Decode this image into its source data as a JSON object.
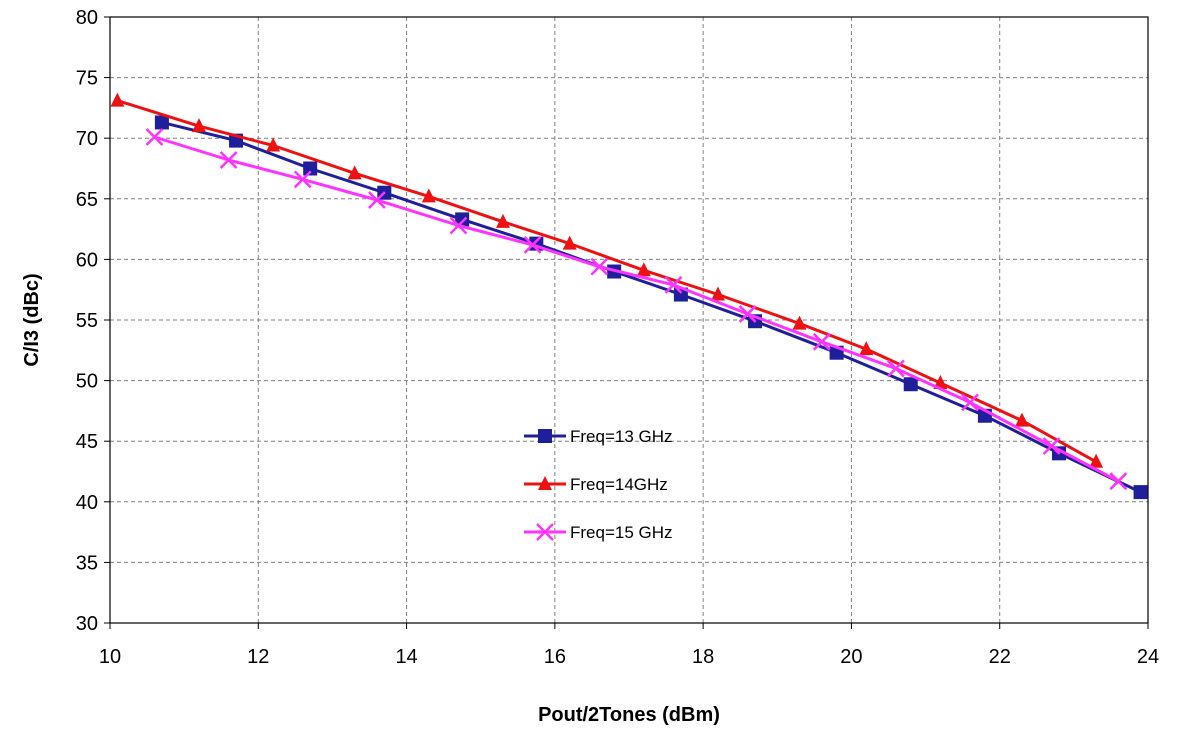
{
  "chart_data": {
    "type": "line",
    "title": "",
    "xlabel": "Pout/2Tones (dBm)",
    "ylabel": "C/I3 (dBc)",
    "xlim": [
      10,
      24
    ],
    "ylim": [
      30,
      80
    ],
    "xticks": [
      10,
      12,
      14,
      16,
      18,
      20,
      22,
      24
    ],
    "yticks": [
      30,
      35,
      40,
      45,
      50,
      55,
      60,
      65,
      70,
      75,
      80
    ],
    "x_tick_labels": [
      "10",
      "12",
      "14",
      "16",
      "18",
      "20",
      "22",
      "24"
    ],
    "y_tick_labels": [
      "30",
      "35",
      "40",
      "45",
      "50",
      "55",
      "60",
      "65",
      "70",
      "75",
      "80"
    ],
    "grid": true,
    "legend_position": "center",
    "series": [
      {
        "name": "Freq=13 GHz",
        "color": "#1f1f9c",
        "marker": "square",
        "x": [
          10.7,
          11.7,
          12.7,
          13.7,
          14.75,
          15.75,
          16.8,
          17.7,
          18.7,
          19.8,
          20.8,
          21.8,
          22.8,
          23.9
        ],
        "y": [
          71.3,
          69.8,
          67.5,
          65.5,
          63.3,
          61.3,
          59.0,
          57.1,
          54.9,
          52.3,
          49.7,
          47.1,
          44.0,
          40.8
        ]
      },
      {
        "name": "Freq=14GHz",
        "color": "#ee1111",
        "marker": "triangle",
        "x": [
          10.1,
          11.2,
          12.2,
          13.3,
          14.3,
          15.3,
          16.2,
          17.2,
          18.2,
          19.3,
          20.2,
          21.2,
          22.3,
          23.3
        ],
        "y": [
          73.1,
          71.0,
          69.4,
          67.1,
          65.2,
          63.1,
          61.3,
          59.1,
          57.1,
          54.7,
          52.6,
          49.8,
          46.7,
          43.3
        ]
      },
      {
        "name": "Freq=15 GHz",
        "color": "#ff33ff",
        "marker": "x",
        "x": [
          10.6,
          11.6,
          12.6,
          13.6,
          14.7,
          15.7,
          16.6,
          17.6,
          18.6,
          19.6,
          20.6,
          21.6,
          22.7,
          23.6
        ],
        "y": [
          70.1,
          68.2,
          66.6,
          64.9,
          62.8,
          61.2,
          59.4,
          57.9,
          55.5,
          53.2,
          51.0,
          48.2,
          44.6,
          41.7
        ]
      }
    ]
  }
}
